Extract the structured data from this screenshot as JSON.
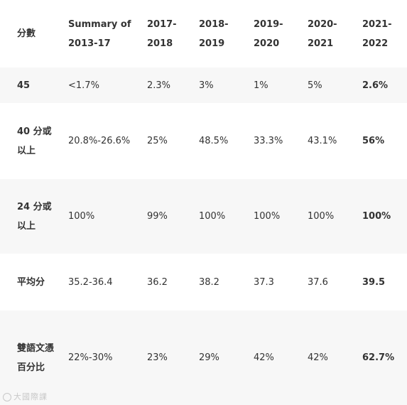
{
  "table": {
    "headers": [
      "分數",
      "Summary of 2013-17",
      "2017-2018",
      "2018-2019",
      "2019-2020",
      "2020-2021",
      "2021-2022"
    ],
    "rows": [
      {
        "label": "45",
        "values": [
          "<1.7%",
          "2.3%",
          "3%",
          "1%",
          "5%",
          "2.6%"
        ]
      },
      {
        "label": "40 分或以上",
        "values": [
          "20.8%-26.6%",
          "25%",
          "48.5%",
          "33.3%",
          "43.1%",
          "56%"
        ]
      },
      {
        "label": "24 分或以上",
        "values": [
          "100%",
          "99%",
          "100%",
          "100%",
          "100%",
          "100%"
        ]
      },
      {
        "label": "平均分",
        "values": [
          "35.2-36.4",
          "36.2",
          "38.2",
          "37.3",
          "37.6",
          "39.5"
        ]
      },
      {
        "label": "雙語文憑百分比",
        "values": [
          "22%-30%",
          "23%",
          "29%",
          "42%",
          "42%",
          "62.7%"
        ]
      }
    ]
  },
  "watermark": "大國際課",
  "colors": {
    "text": "#333333",
    "stripe": "#f7f7f7"
  }
}
